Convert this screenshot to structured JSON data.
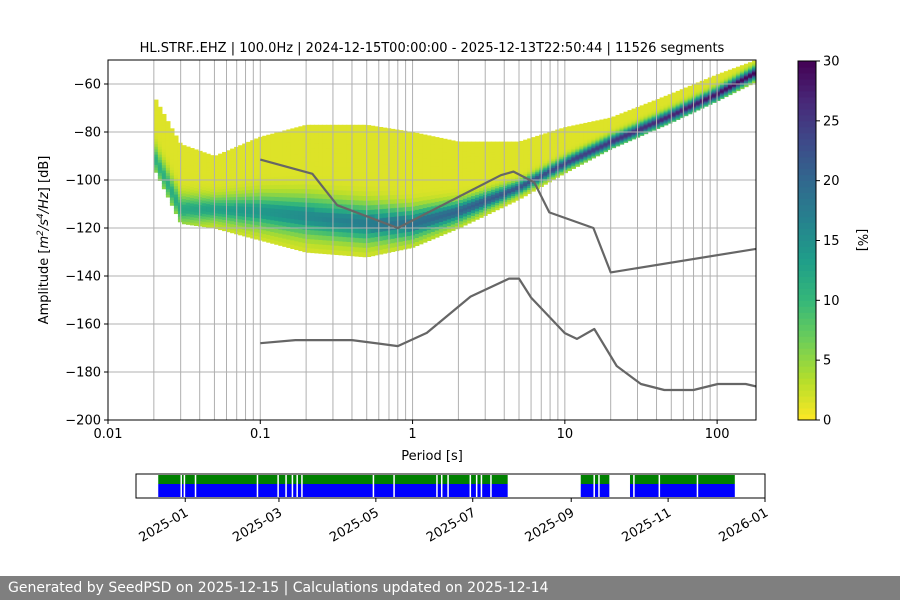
{
  "chart_data": {
    "type": "heatmap",
    "title": "HL.STRF..EHZ | 100.0Hz | 2024-12-15T00:00:00 - 2025-12-13T22:50:44 | 11526 segments",
    "xlabel": "Period [s]",
    "ylabel_parts": [
      "Amplitude [",
      "m",
      "2",
      "/",
      "s",
      "4",
      "/",
      "Hz",
      "] [dB]"
    ],
    "x_scale": "log",
    "xlim": [
      0.01,
      180
    ],
    "ylim": [
      -200,
      -50
    ],
    "x_ticks": [
      {
        "value": 0.01,
        "label": "0.01"
      },
      {
        "value": 0.1,
        "label": "0.1"
      },
      {
        "value": 1,
        "label": "1"
      },
      {
        "value": 10,
        "label": "10"
      },
      {
        "value": 100,
        "label": "100"
      }
    ],
    "y_ticks": [
      {
        "value": -60,
        "label": "−60"
      },
      {
        "value": -80,
        "label": "−80"
      },
      {
        "value": -100,
        "label": "−100"
      },
      {
        "value": -120,
        "label": "−120"
      },
      {
        "value": -140,
        "label": "−140"
      },
      {
        "value": -160,
        "label": "−160"
      },
      {
        "value": -180,
        "label": "−180"
      },
      {
        "value": -200,
        "label": "−200"
      }
    ],
    "vertical_lines": [
      0.02,
      0.03,
      0.04,
      0.05,
      0.06,
      0.07,
      0.08,
      0.09,
      0.1,
      0.2,
      0.3,
      0.4,
      0.5,
      0.6,
      0.7,
      0.8,
      0.9,
      1,
      2,
      3,
      4,
      5,
      6,
      7,
      8,
      9,
      10,
      20,
      30,
      40,
      50,
      60,
      70,
      80,
      90,
      100
    ],
    "horizontal_grid": [
      -60,
      -80,
      -100,
      -120,
      -140,
      -160,
      -180
    ],
    "density_band": {
      "description_points": [
        {
          "period": 0.02,
          "mode": -90,
          "low": -95,
          "high": -65
        },
        {
          "period": 0.03,
          "mode": -112,
          "low": -118,
          "high": -85
        },
        {
          "period": 0.05,
          "mode": -112,
          "low": -120,
          "high": -90
        },
        {
          "period": 0.1,
          "mode": -113,
          "low": -125,
          "high": -82
        },
        {
          "period": 0.2,
          "mode": -115,
          "low": -130,
          "high": -77
        },
        {
          "period": 0.5,
          "mode": -118,
          "low": -132,
          "high": -77
        },
        {
          "period": 1,
          "mode": -118,
          "low": -128,
          "high": -80
        },
        {
          "period": 2,
          "mode": -113,
          "low": -120,
          "high": -84
        },
        {
          "period": 5,
          "mode": -103,
          "low": -108,
          "high": -84
        },
        {
          "period": 10,
          "mode": -93,
          "low": -97,
          "high": -78
        },
        {
          "period": 20,
          "mode": -84,
          "low": -87,
          "high": -74
        },
        {
          "period": 50,
          "mode": -73,
          "low": -76,
          "high": -64
        },
        {
          "period": 100,
          "mode": -64,
          "low": -67,
          "high": -56
        },
        {
          "period": 180,
          "mode": -55,
          "low": -59,
          "high": -50
        }
      ]
    },
    "noise_models": [
      {
        "name": "NHNM",
        "points": [
          [
            0.1,
            -91.5
          ],
          [
            0.22,
            -97.4
          ],
          [
            0.32,
            -110.5
          ],
          [
            0.8,
            -120
          ],
          [
            3.8,
            -98
          ],
          [
            4.6,
            -96.5
          ],
          [
            6.3,
            -101
          ],
          [
            7.9,
            -113.5
          ],
          [
            15.4,
            -120
          ],
          [
            20,
            -138.5
          ],
          [
            180,
            -128.7
          ]
        ]
      },
      {
        "name": "NLNM",
        "points": [
          [
            0.1,
            -168
          ],
          [
            0.17,
            -166.7
          ],
          [
            0.4,
            -166.7
          ],
          [
            0.8,
            -169.2
          ],
          [
            1.24,
            -163.7
          ],
          [
            2.4,
            -148.6
          ],
          [
            4.3,
            -141.1
          ],
          [
            5.0,
            -141.1
          ],
          [
            6.0,
            -149
          ],
          [
            10,
            -163.8
          ],
          [
            12,
            -166.2
          ],
          [
            15.6,
            -162.1
          ],
          [
            21.9,
            -177.5
          ],
          [
            31.6,
            -185
          ],
          [
            45,
            -187.5
          ],
          [
            70,
            -187.5
          ],
          [
            101,
            -185
          ],
          [
            154,
            -185
          ],
          [
            180,
            -186
          ]
        ]
      }
    ],
    "colorbar": {
      "label": "[%]",
      "min": 0,
      "max": 30,
      "ticks": [
        {
          "value": 0,
          "label": "0"
        },
        {
          "value": 5,
          "label": "5"
        },
        {
          "value": 10,
          "label": "10"
        },
        {
          "value": 15,
          "label": "15"
        },
        {
          "value": 20,
          "label": "20"
        },
        {
          "value": 25,
          "label": "25"
        },
        {
          "value": 30,
          "label": "30"
        }
      ],
      "colors": [
        "#fde725",
        "#b5de2b",
        "#6ece58",
        "#35b779",
        "#1f9e89",
        "#26828e",
        "#31688e",
        "#3e4989",
        "#482878",
        "#440154"
      ]
    },
    "data_availability": {
      "ticks": [
        {
          "date": "2025-01-01",
          "label": "2025-01"
        },
        {
          "date": "2025-03-01",
          "label": "2025-03"
        },
        {
          "date": "2025-05-01",
          "label": "2025-05"
        },
        {
          "date": "2025-07-01",
          "label": "2025-07"
        },
        {
          "date": "2025-09-01",
          "label": "2025-09"
        },
        {
          "date": "2025-11-01",
          "label": "2025-11"
        },
        {
          "date": "2026-01-01",
          "label": "2026-01"
        }
      ],
      "range": [
        "2024-12-01",
        "2026-01-01"
      ],
      "available_colors": {
        "upper": "#008000",
        "lower": "#0000ff"
      },
      "segments": [
        [
          "2024-12-15",
          "2025-07-23"
        ],
        [
          "2025-09-07",
          "2025-09-25"
        ],
        [
          "2025-10-08",
          "2025-12-13"
        ]
      ],
      "gaps": [
        "2024-12-29",
        "2024-12-31",
        "2025-01-07",
        "2025-02-15",
        "2025-02-28",
        "2025-03-05",
        "2025-03-09",
        "2025-03-12",
        "2025-03-15",
        "2025-04-29",
        "2025-05-12",
        "2025-06-08",
        "2025-06-11",
        "2025-06-15",
        "2025-06-29",
        "2025-07-03",
        "2025-07-06",
        "2025-07-12",
        "2025-09-15",
        "2025-09-18",
        "2025-10-10",
        "2025-10-26",
        "2025-11-19"
      ]
    }
  },
  "footer": {
    "text": "Generated by SeedPSD on 2025-12-15 | Calculations updated on 2025-12-14"
  }
}
